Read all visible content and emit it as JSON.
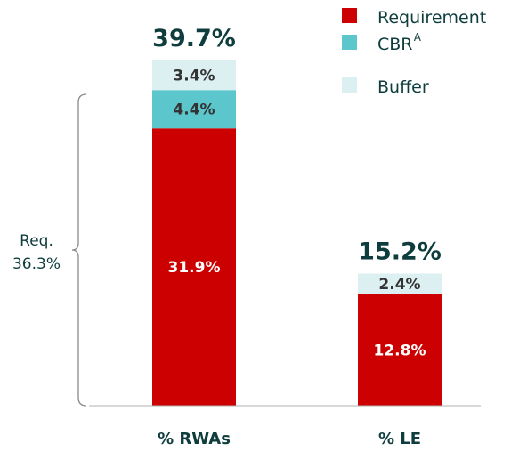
{
  "chart_data": {
    "type": "bar",
    "stacked": true,
    "categories": [
      "% RWAs",
      "% LE"
    ],
    "series": [
      {
        "name": "Requirement",
        "color": "#cc0000",
        "values": [
          31.9,
          12.8
        ],
        "labels": [
          "31.9%",
          "12.8%"
        ]
      },
      {
        "name": "CBR",
        "name_superscript": "A",
        "color": "#5bc7cc",
        "values": [
          4.4,
          0
        ],
        "labels": [
          "4.4%",
          ""
        ]
      },
      {
        "name": "Buffer",
        "color": "#dcf0f2",
        "values": [
          3.4,
          2.4
        ],
        "labels": [
          "3.4%",
          "2.4%"
        ]
      }
    ],
    "totals": [
      "39.7%",
      "15.2%"
    ],
    "bracket": {
      "line1": "Req.",
      "line2": "36.3%",
      "spans_series": [
        "Requirement",
        "CBR"
      ],
      "category": "% RWAs"
    },
    "ylim": [
      0,
      39.7
    ],
    "legend_position": "top-right",
    "grid": false
  }
}
